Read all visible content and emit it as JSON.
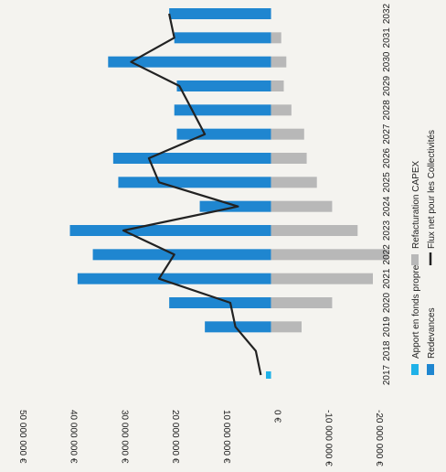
{
  "chart_data": {
    "type": "bar",
    "orientation": "horizontal-rotated",
    "categories": [
      "2017",
      "2018",
      "2019",
      "2020",
      "2021",
      "2022",
      "2023",
      "2024",
      "2025",
      "2026",
      "2027",
      "2028",
      "2029",
      "2030",
      "2031",
      "2032"
    ],
    "tick_labels": [
      "50 000 000 €",
      "40 000 000 €",
      "30 000 000 €",
      "20 000 000 €",
      "10 000 000 €",
      "0 €",
      "-10 000 000 €",
      "-20 000 000 €"
    ],
    "xlim": [
      -20000000,
      50000000
    ],
    "series": [
      {
        "name": "Apport en fonds propres",
        "color": "#1fb1e8",
        "values": [
          1000000,
          0,
          0,
          0,
          0,
          0,
          0,
          0,
          0,
          0,
          0,
          0,
          0,
          0,
          0,
          0
        ]
      },
      {
        "name": "Redevances",
        "color": "#1f86d0",
        "values": [
          0,
          0,
          13000000,
          20000000,
          38000000,
          35000000,
          39500000,
          14000000,
          30000000,
          31000000,
          18500000,
          19000000,
          18500000,
          32000000,
          19000000,
          20000000
        ]
      },
      {
        "name": "Refacturation CAPEX",
        "color": "#b8b8b8",
        "values": [
          0,
          0,
          -6000000,
          -12000000,
          -20000000,
          -23000000,
          -17000000,
          -12000000,
          -9000000,
          -7000000,
          -6500000,
          -4000000,
          -2500000,
          -3000000,
          -2000000,
          0
        ]
      },
      {
        "name": "Flux net pour les Collectivités",
        "color": "#222222",
        "values": [
          2000000,
          3000000,
          7000000,
          8000000,
          22000000,
          19000000,
          29000000,
          6500000,
          22000000,
          24000000,
          13000000,
          15500000,
          18000000,
          27500000,
          19000000,
          20000000
        ]
      }
    ],
    "legend": [
      "Apport en fonds propres",
      "Redevances",
      "Refacturation CAPEX",
      "Flux net pour les Collectivités"
    ]
  }
}
